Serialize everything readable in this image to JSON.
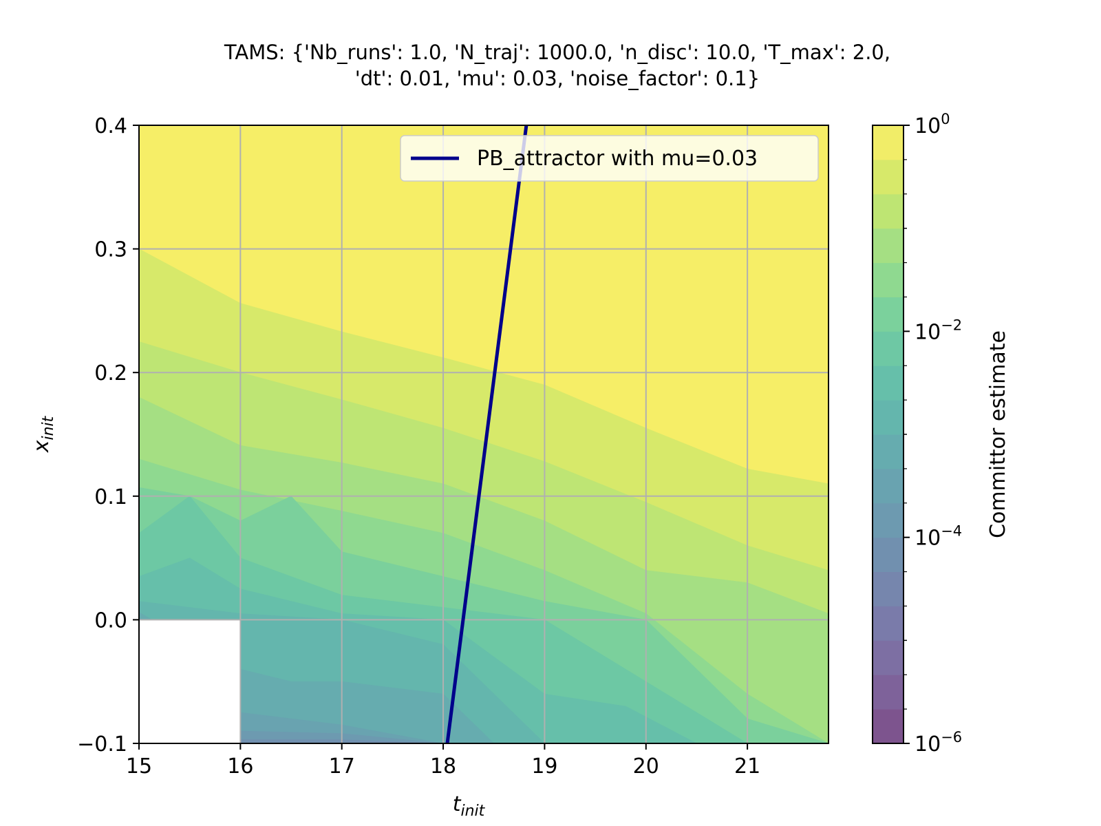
{
  "chart_data": {
    "type": "heatmap",
    "subtype": "filled-contour",
    "title_lines": [
      "TAMS: {'Nb_runs': 1.0, 'N_traj': 1000.0, 'n_disc': 10.0, 'T_max': 2.0,",
      "'dt': 0.01, 'mu': 0.03, 'noise_factor': 0.1}"
    ],
    "xlabel": {
      "base": "t",
      "sub": "init"
    },
    "ylabel": {
      "base": "x",
      "sub": "init"
    },
    "xlim": [
      15,
      21.8
    ],
    "ylim": [
      -0.1,
      0.4
    ],
    "xticks": [
      15,
      16,
      17,
      18,
      19,
      20,
      21
    ],
    "xtick_labels": [
      "15",
      "16",
      "17",
      "18",
      "19",
      "20",
      "21"
    ],
    "yticks": [
      -0.1,
      0.0,
      0.1,
      0.2,
      0.3,
      0.4
    ],
    "ytick_labels": [
      "−0.1",
      "0.0",
      "0.1",
      "0.2",
      "0.3",
      "0.4"
    ],
    "grid": true,
    "colormap": "viridis",
    "alpha": 0.7,
    "colorbar": {
      "label": "Committor estimate",
      "scale": "log",
      "range": [
        -6,
        0
      ],
      "levels": 18,
      "major_ticks": [
        {
          "exp": 0,
          "base": "10",
          "sup": "0"
        },
        {
          "exp": -2,
          "base": "10",
          "sup": "−2"
        },
        {
          "exp": -4,
          "base": "10",
          "sup": "−4"
        },
        {
          "exp": -6,
          "base": "10",
          "sup": "−6"
        }
      ],
      "minor_ticks": [
        -1,
        -3,
        -5
      ]
    },
    "masked_region": {
      "x": [
        15,
        16
      ],
      "y": [
        -0.1,
        0.0
      ]
    },
    "contour_boundaries": [
      {
        "log10": -0.33,
        "x": [
          15,
          16,
          17,
          18,
          19,
          20,
          21,
          21.8
        ],
        "y": [
          0.3,
          0.256,
          0.233,
          0.212,
          0.19,
          0.155,
          0.122,
          0.11
        ]
      },
      {
        "log10": -0.67,
        "x": [
          15,
          16,
          17,
          18,
          19,
          20,
          21,
          21.8
        ],
        "y": [
          0.225,
          0.2,
          0.178,
          0.155,
          0.128,
          0.095,
          0.06,
          0.04
        ]
      },
      {
        "log10": -1.0,
        "x": [
          15,
          16,
          17,
          18,
          19,
          20,
          21,
          21.8
        ],
        "y": [
          0.18,
          0.141,
          0.127,
          0.11,
          0.08,
          0.04,
          0.03,
          0.005
        ]
      },
      {
        "log10": -1.33,
        "x": [
          15,
          16,
          17,
          18,
          19,
          20,
          21,
          21.8
        ],
        "y": [
          0.13,
          0.105,
          0.088,
          0.07,
          0.04,
          0.005,
          -0.06,
          -0.1
        ]
      },
      {
        "log10": -1.67,
        "x": [
          15,
          15.5,
          16,
          16.5,
          17,
          18,
          19,
          20,
          21,
          21.8
        ],
        "y": [
          0.107,
          0.1,
          0.08,
          0.1,
          0.055,
          0.035,
          0.015,
          0.0,
          -0.08,
          -0.1
        ]
      },
      {
        "log10": -2.0,
        "x": [
          15,
          15.5,
          16,
          17,
          18,
          19,
          20,
          21
        ],
        "y": [
          0.07,
          0.1,
          0.05,
          0.02,
          0.01,
          0.0,
          -0.05,
          -0.1
        ]
      },
      {
        "log10": -2.33,
        "x": [
          15,
          15.5,
          16,
          17,
          18,
          19,
          19.8,
          20.5
        ],
        "y": [
          0.035,
          0.05,
          0.025,
          0.005,
          0.0,
          -0.06,
          -0.07,
          -0.1
        ]
      },
      {
        "log10": -2.67,
        "x": [
          15,
          16,
          17,
          18,
          19
        ],
        "y": [
          0.015,
          0.005,
          0.0,
          -0.02,
          -0.1
        ]
      },
      {
        "log10": -3.0,
        "x": [
          15,
          16,
          16.5,
          17,
          18,
          18.5
        ],
        "y": [
          0.006,
          -0.04,
          -0.05,
          -0.05,
          -0.06,
          -0.1
        ]
      },
      {
        "log10": -3.33,
        "x": [
          15,
          16,
          17,
          18
        ],
        "y": [
          0.002,
          -0.075,
          -0.085,
          -0.1
        ]
      },
      {
        "log10": -3.67,
        "x": [
          16,
          17,
          18
        ],
        "y": [
          -0.09,
          -0.092,
          -0.1
        ]
      },
      {
        "log10": -4.0,
        "x": [
          16,
          17,
          18
        ],
        "y": [
          -0.097,
          -0.097,
          -0.1
        ]
      }
    ],
    "series": [
      {
        "name": "PB_attractor with mu=0.03",
        "color": "#00008b",
        "x": [
          18.04,
          18.82
        ],
        "y": [
          -0.1,
          0.4
        ]
      }
    ],
    "legend": {
      "placement": "top-right",
      "entries": [
        "PB_attractor with mu=0.03"
      ]
    }
  }
}
